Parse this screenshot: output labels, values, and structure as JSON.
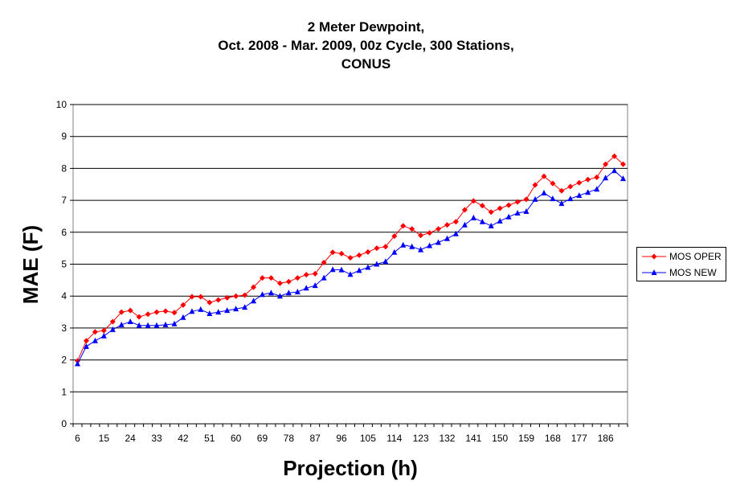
{
  "chart_data": {
    "type": "line",
    "title": [
      "2 Meter Dewpoint,",
      "Oct. 2008 - Mar. 2009, 00z Cycle, 300 Stations,",
      "CONUS"
    ],
    "xlabel": "Projection (h)",
    "ylabel": "MAE (F)",
    "ylim": [
      0,
      10
    ],
    "yticks": [
      0,
      1,
      2,
      3,
      4,
      5,
      6,
      7,
      8,
      9,
      10
    ],
    "x": [
      6,
      9,
      12,
      15,
      18,
      21,
      24,
      27,
      30,
      33,
      36,
      39,
      42,
      45,
      48,
      51,
      54,
      57,
      60,
      63,
      66,
      69,
      72,
      75,
      78,
      81,
      84,
      87,
      90,
      93,
      96,
      99,
      102,
      105,
      108,
      111,
      114,
      117,
      120,
      123,
      126,
      129,
      132,
      135,
      138,
      141,
      144,
      147,
      150,
      153,
      156,
      159,
      162,
      165,
      168,
      171,
      174,
      177,
      180,
      183,
      186,
      189,
      192
    ],
    "xtick_labels": [
      "6",
      "15",
      "24",
      "33",
      "42",
      "51",
      "60",
      "69",
      "78",
      "87",
      "96",
      "105",
      "114",
      "123",
      "132",
      "141",
      "150",
      "159",
      "168",
      "177",
      "186"
    ],
    "legend_position": "right",
    "grid": "horizontal",
    "series": [
      {
        "name": "MOS OPER",
        "color": "#ff0000",
        "marker": "diamond",
        "values": [
          1.97,
          2.6,
          2.88,
          2.92,
          3.2,
          3.5,
          3.55,
          3.35,
          3.43,
          3.5,
          3.53,
          3.48,
          3.72,
          3.98,
          3.98,
          3.8,
          3.88,
          3.95,
          4.0,
          4.03,
          4.28,
          4.57,
          4.57,
          4.4,
          4.45,
          4.57,
          4.67,
          4.7,
          5.05,
          5.37,
          5.33,
          5.2,
          5.28,
          5.38,
          5.5,
          5.55,
          5.88,
          6.2,
          6.1,
          5.9,
          5.98,
          6.1,
          6.23,
          6.33,
          6.7,
          6.98,
          6.83,
          6.63,
          6.75,
          6.85,
          6.95,
          7.03,
          7.48,
          7.75,
          7.53,
          7.3,
          7.43,
          7.55,
          7.65,
          7.72,
          8.13,
          8.38,
          8.13
        ]
      },
      {
        "name": "MOS NEW",
        "color": "#0000ff",
        "marker": "triangle",
        "values": [
          1.88,
          2.42,
          2.6,
          2.75,
          2.95,
          3.1,
          3.2,
          3.08,
          3.08,
          3.08,
          3.1,
          3.13,
          3.33,
          3.52,
          3.58,
          3.45,
          3.5,
          3.55,
          3.6,
          3.65,
          3.85,
          4.05,
          4.1,
          4.0,
          4.1,
          4.13,
          4.25,
          4.33,
          4.57,
          4.83,
          4.82,
          4.68,
          4.8,
          4.9,
          5.0,
          5.08,
          5.37,
          5.6,
          5.55,
          5.45,
          5.58,
          5.68,
          5.8,
          5.95,
          6.23,
          6.45,
          6.33,
          6.2,
          6.35,
          6.48,
          6.6,
          6.65,
          7.03,
          7.23,
          7.05,
          6.9,
          7.05,
          7.15,
          7.25,
          7.35,
          7.7,
          7.93,
          7.68
        ]
      }
    ]
  }
}
